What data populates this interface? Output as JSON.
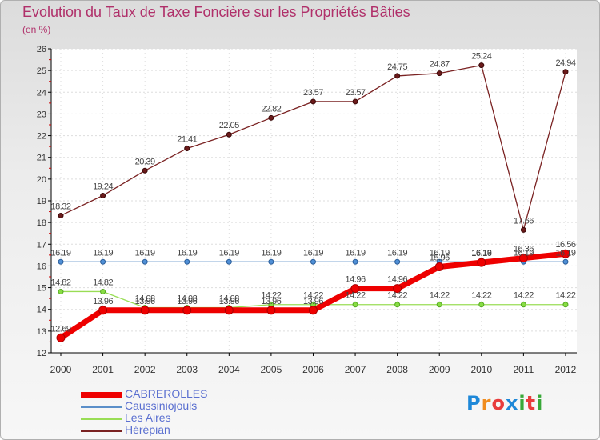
{
  "title": "Evolution du Taux de Taxe Foncière sur les Propriétés Bâties",
  "unit_label": "(en %)",
  "logo": {
    "letters": [
      "P",
      "r",
      "o",
      "x",
      "i",
      "t",
      "i"
    ],
    "colors": [
      "#1e88d8",
      "#f08c1e",
      "#e83c3c",
      "#1e88d8",
      "#38a838",
      "#e83c3c",
      "#38a838"
    ]
  },
  "chart_data": {
    "type": "line",
    "title": "Evolution du Taux de Taxe Foncière sur les Propriétés Bâties",
    "ylabel": "(en %)",
    "xlabel": "",
    "ylim": [
      12,
      26
    ],
    "yticks": [
      "12",
      "13",
      "14",
      "15",
      "16",
      "17",
      "18",
      "19",
      "20",
      "21",
      "22",
      "23",
      "24",
      "25",
      "26"
    ],
    "categories": [
      "2000",
      "2001",
      "2002",
      "2003",
      "2004",
      "2005",
      "2006",
      "2007",
      "2008",
      "2009",
      "2010",
      "2011",
      "2012"
    ],
    "series": [
      {
        "name": "CABREROLLES",
        "color": "#ee0000",
        "labels": [
          "12.69",
          "13.96",
          "13.96",
          "13.96",
          "13.96",
          "13.96",
          "13.96",
          "14.96",
          "14.96",
          "15.96",
          "16.16",
          "16.36",
          "16.56"
        ],
        "values": [
          12.69,
          13.96,
          13.96,
          13.96,
          13.96,
          13.96,
          13.96,
          14.96,
          14.96,
          15.96,
          16.16,
          16.36,
          16.56
        ]
      },
      {
        "name": "Caussiniojouls",
        "color": "#5b8fc9",
        "labels": [
          "16.19",
          "16.19",
          "16.19",
          "16.19",
          "16.19",
          "16.19",
          "16.19",
          "16.19",
          "16.19",
          "16.19",
          "16.19",
          "16.19",
          "16.19"
        ],
        "values": [
          16.19,
          16.19,
          16.19,
          16.19,
          16.19,
          16.19,
          16.19,
          16.19,
          16.19,
          16.19,
          16.19,
          16.19,
          16.19
        ]
      },
      {
        "name": "Les Aires",
        "color": "#99dd55",
        "labels": [
          "14.82",
          "14.82",
          "14.08",
          "14.08",
          "14.08",
          "14.22",
          "14.22",
          "14.22",
          "14.22",
          "14.22",
          "14.22",
          "14.22",
          "14.22"
        ],
        "values": [
          14.82,
          14.82,
          14.08,
          14.08,
          14.08,
          14.22,
          14.22,
          14.22,
          14.22,
          14.22,
          14.22,
          14.22,
          14.22
        ]
      },
      {
        "name": "Hérépian",
        "color": "#7a2222",
        "labels": [
          "18.32",
          "19.24",
          "20.39",
          "21.41",
          "22.05",
          "22.82",
          "23.57",
          "23.57",
          "24.75",
          "24.87",
          "25.24",
          "17.66",
          "24.94"
        ],
        "values": [
          18.32,
          19.24,
          20.39,
          21.41,
          22.05,
          22.82,
          23.57,
          23.57,
          24.75,
          24.87,
          25.24,
          17.66,
          24.94
        ]
      }
    ]
  }
}
